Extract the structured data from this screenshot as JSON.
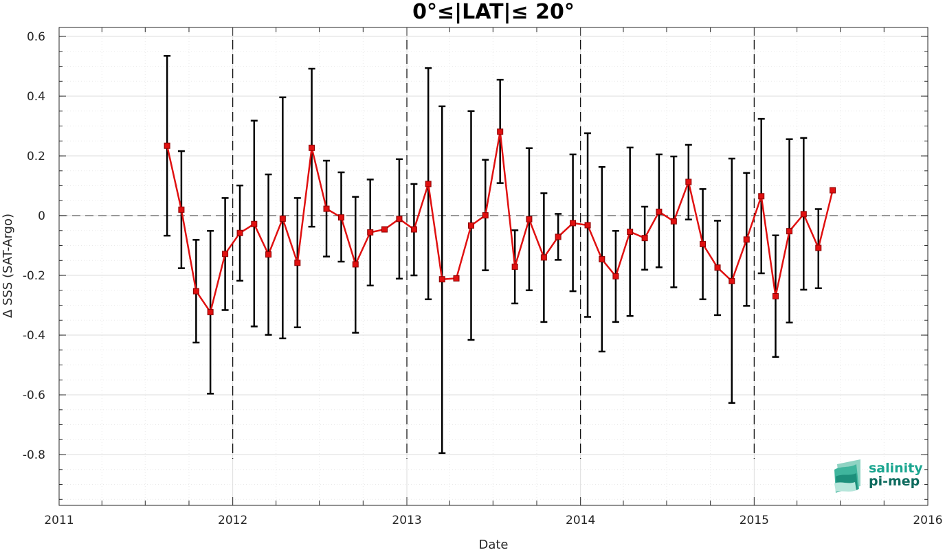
{
  "chart_data": {
    "type": "line",
    "title": "0°≤|LAT|≤ 20°",
    "xlabel": "Date",
    "ylabel": "Δ SSS (SAT-Argo)",
    "xlim": [
      "2011-01-01",
      "2016-01-01"
    ],
    "ylim": [
      -0.97,
      0.63
    ],
    "x_ticks": [
      "2011",
      "2012",
      "2013",
      "2014",
      "2015",
      "2016"
    ],
    "y_ticks": [
      "0.6",
      "0.4",
      "0.2",
      "0",
      "-0.2",
      "-0.4",
      "-0.6",
      "-0.8"
    ],
    "year_boundaries": [
      "2012-01-01",
      "2013-01-01",
      "2014-01-01",
      "2015-01-01"
    ],
    "zero_reference_line": 0,
    "grid": true,
    "colors": {
      "series": "#e01010",
      "marker": "#e01010",
      "errorbar": "#000000",
      "grid": "#e6e6e6"
    },
    "series": [
      {
        "x": [
          "2011-08-16",
          "2011-09-15",
          "2011-10-16",
          "2011-11-15",
          "2011-12-16",
          "2012-01-16",
          "2012-02-15",
          "2012-03-16",
          "2012-04-15",
          "2012-05-16",
          "2012-06-15",
          "2012-07-16",
          "2012-08-16",
          "2012-09-15",
          "2012-10-16",
          "2012-11-15",
          "2012-12-16",
          "2013-01-16",
          "2013-02-15",
          "2013-03-16",
          "2013-04-15",
          "2013-05-16",
          "2013-06-15",
          "2013-07-16",
          "2013-08-16",
          "2013-09-15",
          "2013-10-16",
          "2013-11-15",
          "2013-12-16",
          "2014-01-16",
          "2014-02-15",
          "2014-03-16",
          "2014-04-15",
          "2014-05-16",
          "2014-06-15",
          "2014-07-16",
          "2014-08-16",
          "2014-09-15",
          "2014-10-16",
          "2014-11-15",
          "2014-12-16",
          "2015-01-16",
          "2015-02-15",
          "2015-03-16",
          "2015-04-15",
          "2015-05-16",
          "2015-06-15"
        ],
        "values": [
          0.234,
          0.02,
          -0.253,
          -0.323,
          -0.128,
          -0.058,
          -0.028,
          -0.13,
          -0.01,
          -0.158,
          0.227,
          0.023,
          -0.006,
          -0.163,
          -0.056,
          -0.046,
          -0.011,
          -0.046,
          0.106,
          -0.213,
          -0.21,
          -0.033,
          0.001,
          0.281,
          -0.171,
          -0.012,
          -0.14,
          -0.071,
          -0.025,
          -0.032,
          -0.146,
          -0.203,
          -0.054,
          -0.075,
          0.013,
          -0.019,
          0.113,
          -0.095,
          -0.174,
          -0.219,
          -0.08,
          0.065,
          -0.27,
          -0.052,
          0.005,
          -0.108,
          0.085
        ],
        "err_low": [
          -0.067,
          -0.176,
          -0.425,
          -0.596,
          -0.316,
          -0.218,
          -0.371,
          -0.399,
          -0.411,
          -0.374,
          -0.037,
          -0.137,
          -0.154,
          -0.392,
          -0.234,
          null,
          -0.211,
          -0.2,
          -0.28,
          -0.795,
          null,
          -0.416,
          -0.183,
          0.109,
          -0.294,
          -0.25,
          -0.356,
          -0.148,
          -0.253,
          -0.339,
          -0.455,
          -0.356,
          -0.336,
          -0.181,
          -0.173,
          -0.24,
          -0.013,
          -0.28,
          -0.333,
          -0.627,
          -0.302,
          -0.193,
          -0.473,
          -0.358,
          -0.248,
          -0.243,
          null
        ],
        "err_high": [
          0.535,
          0.216,
          -0.081,
          -0.051,
          0.059,
          0.101,
          0.318,
          0.138,
          0.396,
          0.059,
          0.492,
          0.184,
          0.145,
          0.063,
          0.121,
          null,
          0.189,
          0.106,
          0.494,
          0.366,
          null,
          0.35,
          0.187,
          0.455,
          -0.049,
          0.226,
          0.075,
          0.006,
          0.205,
          0.276,
          0.163,
          -0.051,
          0.228,
          0.03,
          0.205,
          0.198,
          0.237,
          0.089,
          -0.017,
          0.191,
          0.143,
          0.324,
          -0.066,
          0.256,
          0.26,
          0.022,
          null
        ]
      }
    ]
  },
  "logo": {
    "line1": "salinity",
    "line2": "pi-mep"
  }
}
